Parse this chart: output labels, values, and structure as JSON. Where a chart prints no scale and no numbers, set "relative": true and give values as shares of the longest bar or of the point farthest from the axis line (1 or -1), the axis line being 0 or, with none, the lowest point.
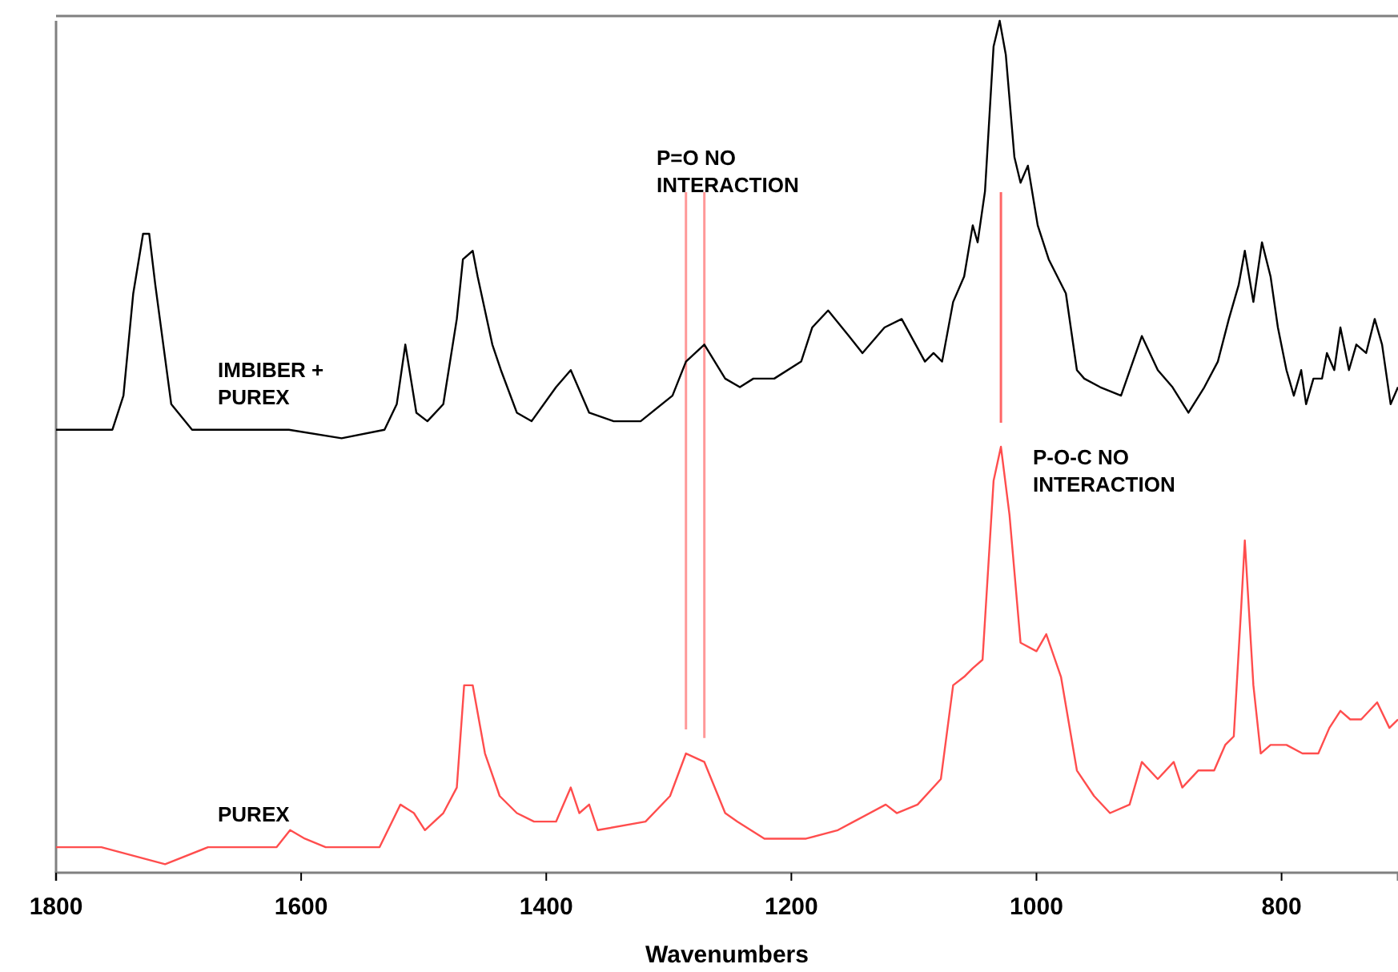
{
  "chart_data": {
    "type": "line",
    "relative": true,
    "xlabel": "Wavenumbers",
    "xlim": [
      1800,
      705
    ],
    "xticks": [
      1800,
      1600,
      1400,
      1200,
      1000,
      800
    ],
    "grid": false,
    "legend": false,
    "marker": "none",
    "line_style": "solid",
    "series": [
      {
        "name": "IMBIBER + PUREX",
        "color": "#000000",
        "x": [
          1800,
          1754,
          1745,
          1737,
          1729,
          1724,
          1719,
          1706,
          1689,
          1654,
          1610,
          1567,
          1532,
          1522,
          1515,
          1506,
          1497,
          1484,
          1473,
          1468,
          1460,
          1456,
          1444,
          1437,
          1424,
          1412,
          1392,
          1380,
          1365,
          1345,
          1323,
          1297,
          1286,
          1271,
          1254,
          1242,
          1231,
          1214,
          1192,
          1183,
          1170,
          1153,
          1142,
          1124,
          1110,
          1091,
          1084,
          1077,
          1068,
          1059,
          1052,
          1048,
          1042,
          1035,
          1030,
          1025,
          1018,
          1013,
          1007,
          999,
          990,
          976,
          967,
          961,
          948,
          931,
          914,
          901,
          889,
          876,
          863,
          852,
          843,
          835,
          830,
          823,
          816,
          809,
          803,
          796,
          790,
          784,
          780,
          774,
          767,
          763,
          757,
          752,
          745,
          739,
          731,
          724,
          718,
          711,
          705
        ],
        "values": [
          0.52,
          0.52,
          0.56,
          0.68,
          0.75,
          0.75,
          0.69,
          0.55,
          0.52,
          0.52,
          0.52,
          0.51,
          0.52,
          0.55,
          0.62,
          0.54,
          0.53,
          0.55,
          0.65,
          0.72,
          0.73,
          0.7,
          0.62,
          0.59,
          0.54,
          0.53,
          0.57,
          0.59,
          0.54,
          0.53,
          0.53,
          0.56,
          0.6,
          0.62,
          0.58,
          0.57,
          0.58,
          0.58,
          0.6,
          0.64,
          0.66,
          0.63,
          0.61,
          0.64,
          0.65,
          0.6,
          0.61,
          0.6,
          0.67,
          0.7,
          0.76,
          0.74,
          0.8,
          0.97,
          1,
          0.96,
          0.84,
          0.81,
          0.83,
          0.76,
          0.72,
          0.68,
          0.59,
          0.58,
          0.57,
          0.56,
          0.63,
          0.59,
          0.57,
          0.54,
          0.57,
          0.6,
          0.65,
          0.69,
          0.73,
          0.67,
          0.74,
          0.7,
          0.64,
          0.59,
          0.56,
          0.59,
          0.55,
          0.58,
          0.58,
          0.61,
          0.59,
          0.64,
          0.59,
          0.62,
          0.61,
          0.65,
          0.62,
          0.55,
          0.57
        ]
      },
      {
        "name": "PUREX",
        "color": "#ff4d4d",
        "x": [
          1800,
          1763,
          1711,
          1676,
          1620,
          1609,
          1597,
          1580,
          1536,
          1519,
          1508,
          1499,
          1484,
          1473,
          1467,
          1460,
          1450,
          1438,
          1424,
          1410,
          1392,
          1380,
          1373,
          1365,
          1358,
          1319,
          1299,
          1286,
          1271,
          1254,
          1244,
          1222,
          1188,
          1162,
          1149,
          1123,
          1114,
          1097,
          1078,
          1068,
          1059,
          1052,
          1044,
          1035,
          1029,
          1022,
          1013,
          1000,
          992,
          980,
          967,
          953,
          940,
          924,
          914,
          901,
          888,
          881,
          868,
          855,
          846,
          839,
          833,
          830,
          823,
          817,
          809,
          796,
          783,
          770,
          761,
          752,
          744,
          735,
          722,
          712,
          705
        ],
        "values": [
          0.03,
          0.03,
          0.01,
          0.03,
          0.03,
          0.05,
          0.04,
          0.03,
          0.03,
          0.08,
          0.07,
          0.05,
          0.07,
          0.1,
          0.22,
          0.22,
          0.14,
          0.09,
          0.07,
          0.06,
          0.06,
          0.1,
          0.07,
          0.08,
          0.05,
          0.06,
          0.09,
          0.14,
          0.13,
          0.07,
          0.06,
          0.04,
          0.04,
          0.05,
          0.06,
          0.08,
          0.07,
          0.08,
          0.11,
          0.22,
          0.23,
          0.24,
          0.25,
          0.46,
          0.5,
          0.42,
          0.27,
          0.26,
          0.28,
          0.23,
          0.12,
          0.09,
          0.07,
          0.08,
          0.13,
          0.11,
          0.13,
          0.1,
          0.12,
          0.12,
          0.15,
          0.16,
          0.31,
          0.39,
          0.22,
          0.14,
          0.15,
          0.15,
          0.14,
          0.14,
          0.17,
          0.19,
          0.18,
          0.18,
          0.2,
          0.17,
          0.18
        ]
      }
    ],
    "ref_lines": [
      {
        "axis": "x",
        "value": 1286,
        "color": "#ff9999"
      },
      {
        "axis": "x",
        "value": 1271,
        "color": "#ff9999"
      },
      {
        "axis": "x",
        "value": 1029,
        "color": "#ff6666"
      }
    ],
    "annotations": [
      "P=O NO INTERACTION",
      "P-O-C NO INTERACTION"
    ]
  }
}
